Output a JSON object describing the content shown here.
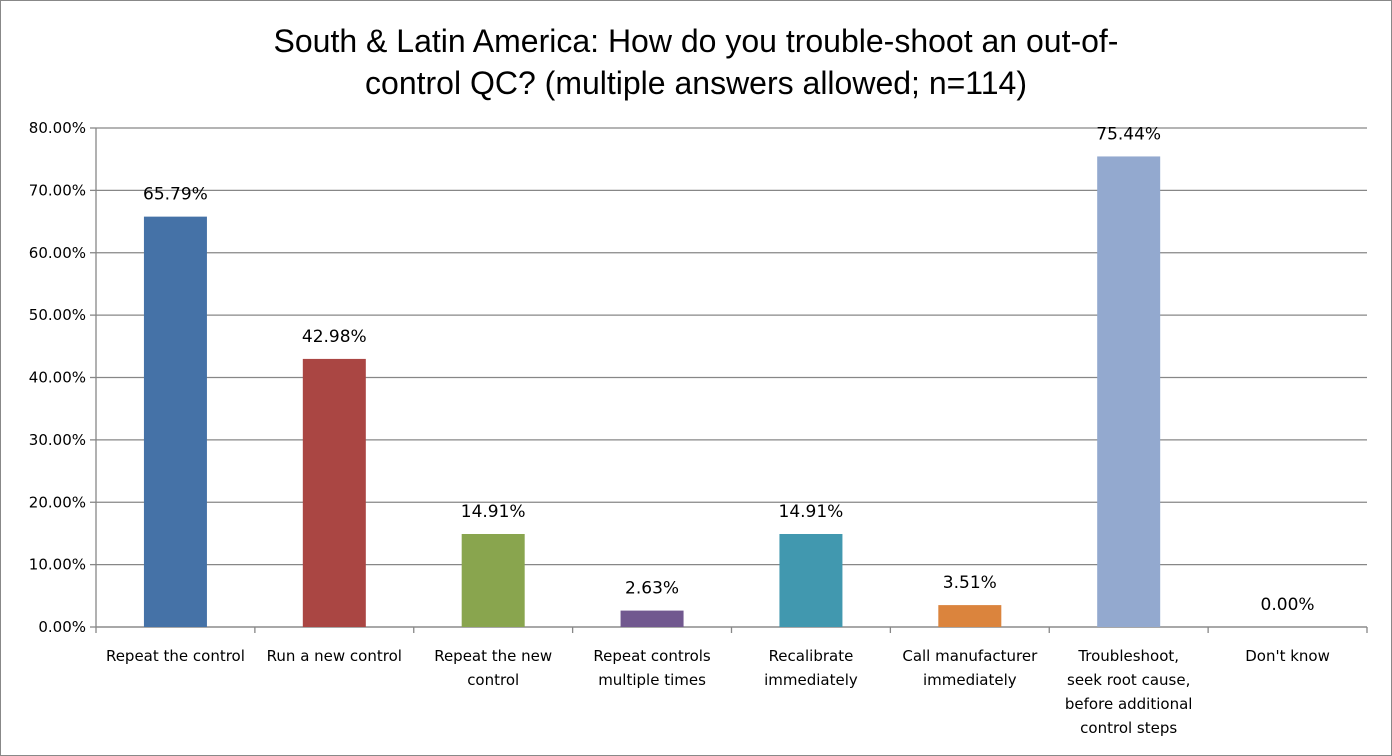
{
  "chart_data": {
    "type": "bar",
    "title_lines": [
      "South & Latin America: How do you trouble-shoot an out-of-",
      "control QC? (multiple answers allowed; n=114)"
    ],
    "categories": [
      [
        "Repeat the control"
      ],
      [
        "Run a new control"
      ],
      [
        "Repeat the new",
        "control"
      ],
      [
        "Repeat controls",
        "multiple times"
      ],
      [
        "Recalibrate",
        "immediately"
      ],
      [
        "Call  manufacturer",
        "immediately"
      ],
      [
        "Troubleshoot,",
        "seek root cause,",
        "before additional",
        "control steps"
      ],
      [
        "Don't know"
      ]
    ],
    "values": [
      65.79,
      42.98,
      14.91,
      2.63,
      14.91,
      3.51,
      75.44,
      0.0
    ],
    "data_labels": [
      "65.79%",
      "42.98%",
      "14.91%",
      "2.63%",
      "14.91%",
      "3.51%",
      "75.44%",
      "0.00%"
    ],
    "colors": [
      "#4572A7",
      "#AA4643",
      "#89A54E",
      "#71588F",
      "#4198AF",
      "#DB843D",
      "#93A9CF",
      "#B9CD96"
    ],
    "ylim": [
      0,
      80
    ],
    "y_ticks": [
      "0.00%",
      "10.00%",
      "20.00%",
      "30.00%",
      "40.00%",
      "50.00%",
      "60.00%",
      "70.00%",
      "80.00%"
    ],
    "grid": true,
    "legend": "none"
  }
}
